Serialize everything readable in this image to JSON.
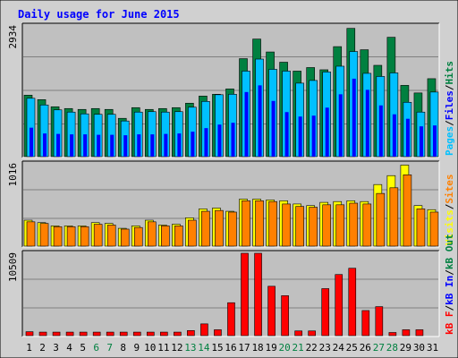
{
  "chart_data": [
    {
      "type": "bar",
      "title": "Daily usage for June 2015",
      "ymax_label": "2934",
      "ylim": [
        0,
        2934
      ],
      "grid": true,
      "legend": [
        {
          "label": "Pages",
          "color": "#00c0ff"
        },
        {
          "label": "Files",
          "color": "#0000ff"
        },
        {
          "label": "Hits",
          "color": "#008040"
        }
      ],
      "legend_separator": "/",
      "categories": [
        "1",
        "2",
        "3",
        "4",
        "5",
        "6",
        "7",
        "8",
        "9",
        "10",
        "11",
        "12",
        "13",
        "14",
        "15",
        "16",
        "17",
        "18",
        "19",
        "20",
        "21",
        "22",
        "23",
        "24",
        "25",
        "26",
        "27",
        "28",
        "29",
        "30",
        "31"
      ],
      "weekend_days": [
        "6",
        "7",
        "13",
        "14",
        "20",
        "21",
        "27",
        "28"
      ],
      "weekday_color": "#000000",
      "weekend_color": "#008040",
      "series": [
        {
          "name": "Hits",
          "color": "#008040",
          "values": [
            1380,
            1280,
            1120,
            1080,
            1060,
            1080,
            1060,
            860,
            1100,
            1060,
            1080,
            1100,
            1200,
            1360,
            1400,
            1520,
            2200,
            2640,
            2350,
            2120,
            1920,
            2000,
            1950,
            2470,
            2880,
            2400,
            2050,
            2680,
            1600,
            1430,
            1750
          ]
        },
        {
          "name": "Pages",
          "color": "#00c0ff",
          "values": [
            1310,
            1160,
            1050,
            1000,
            960,
            950,
            950,
            800,
            1000,
            1010,
            1000,
            1010,
            1110,
            1240,
            1390,
            1400,
            1920,
            2190,
            1960,
            1920,
            1650,
            1710,
            1900,
            2030,
            2360,
            1870,
            1800,
            1880,
            1220,
            1000,
            1450
          ]
        },
        {
          "name": "Files",
          "color": "#0000ff",
          "values": [
            650,
            520,
            510,
            500,
            500,
            490,
            490,
            480,
            500,
            500,
            510,
            520,
            560,
            640,
            720,
            760,
            1450,
            1600,
            1250,
            1000,
            900,
            920,
            1100,
            1400,
            1750,
            1500,
            1150,
            950,
            850,
            680,
            700
          ]
        }
      ]
    },
    {
      "type": "bar",
      "ymax_label": "1016",
      "ylim": [
        0,
        1016
      ],
      "grid": true,
      "legend": [
        {
          "label": "Visits",
          "color": "#ffff00"
        },
        {
          "label": "Sites",
          "color": "#ff8000"
        }
      ],
      "legend_separator": "/",
      "series": [
        {
          "name": "Visits",
          "color": "#ffff00",
          "values": [
            320,
            290,
            250,
            250,
            250,
            290,
            280,
            220,
            250,
            320,
            260,
            270,
            350,
            460,
            470,
            430,
            580,
            580,
            570,
            560,
            520,
            500,
            540,
            550,
            560,
            550,
            760,
            870,
            1000,
            500,
            450
          ]
        },
        {
          "name": "Sites",
          "color": "#ff8000",
          "values": [
            300,
            280,
            240,
            240,
            240,
            270,
            260,
            210,
            230,
            300,
            250,
            250,
            320,
            430,
            440,
            420,
            560,
            560,
            550,
            520,
            490,
            480,
            510,
            510,
            530,
            520,
            650,
            720,
            880,
            460,
            420
          ]
        }
      ]
    },
    {
      "type": "bar",
      "ymax_label": "10509",
      "ylim": [
        0,
        10509
      ],
      "grid": true,
      "legend": [
        {
          "label": "kB F",
          "color": "#ff0000"
        },
        {
          "label": "kB In",
          "color": "#0000ff"
        },
        {
          "label": "kB Out",
          "color": "#008040"
        }
      ],
      "legend_separator": "/",
      "series": [
        {
          "name": "kB F",
          "color": "#ff0000",
          "values": [
            500,
            450,
            450,
            450,
            450,
            450,
            450,
            450,
            450,
            450,
            450,
            450,
            650,
            1500,
            750,
            4200,
            10509,
            10509,
            6300,
            5100,
            600,
            600,
            6000,
            7800,
            8600,
            3200,
            3700,
            400,
            750,
            750,
            0
          ]
        }
      ]
    }
  ]
}
